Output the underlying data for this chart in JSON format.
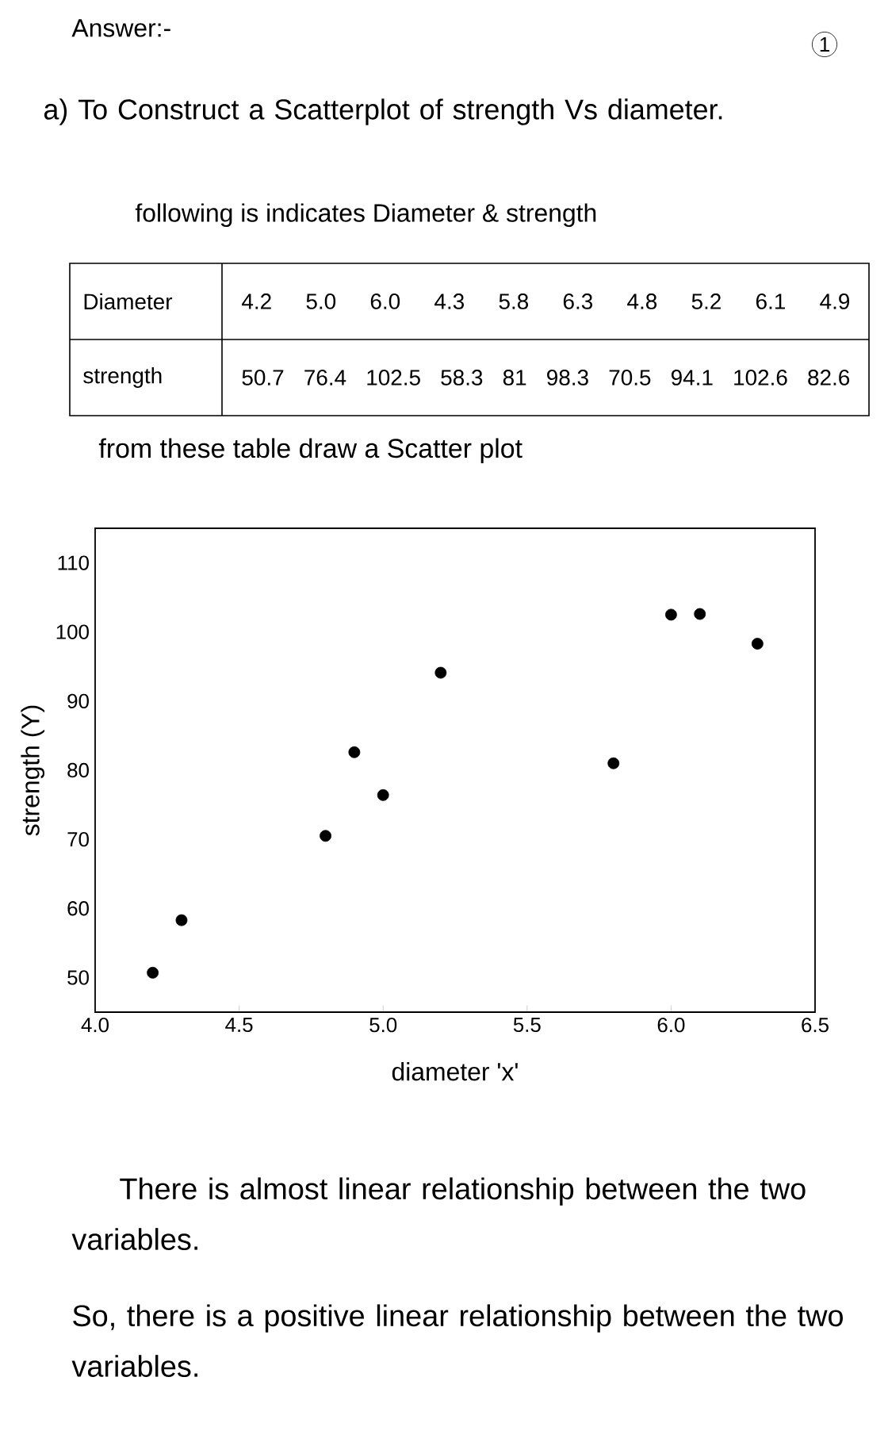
{
  "chart_data": {
    "type": "scatter",
    "title": "a) To Construct a Scatterplot of strength Vs diameter.",
    "annotations": [
      "Answer:-",
      "1",
      "following is indicates Diameter & strength",
      "Diameter",
      "4.2 5.0 6.0 4.3 5.8 6.3 4.8 5.2 6.1 4.9",
      "strength",
      "50.7 76.4 102.5 58.3 81 98.3 70.5 94.1 102.6 82.6",
      "from these table draw a Scatter plot",
      "There is almost linear relationship between the two variables.",
      "So, there is a positive linear relationship between the two variables."
    ],
    "x": [
      4.2,
      5.0,
      6.0,
      4.3,
      5.8,
      6.3,
      4.8,
      5.2,
      6.1,
      4.9
    ],
    "values": [
      50.7,
      76.4,
      102.5,
      58.3,
      81,
      98.3,
      70.5,
      94.1,
      102.6,
      82.6
    ],
    "color": "#000000",
    "marker": "circle",
    "xlabel": "diameter 'x'",
    "ylabel": "strength (Y)",
    "xlim": [
      4.0,
      6.5
    ],
    "ylim": [
      45,
      115
    ],
    "xticks": [
      {
        "value": 4.0,
        "label": "4.0"
      },
      4.5,
      {
        "value": 5.0,
        "label": "5.0"
      },
      5.5,
      {
        "value": 6.0,
        "label": "6.0"
      },
      6.5
    ],
    "yticks": [
      50,
      60,
      70,
      80,
      90,
      100,
      110
    ]
  }
}
